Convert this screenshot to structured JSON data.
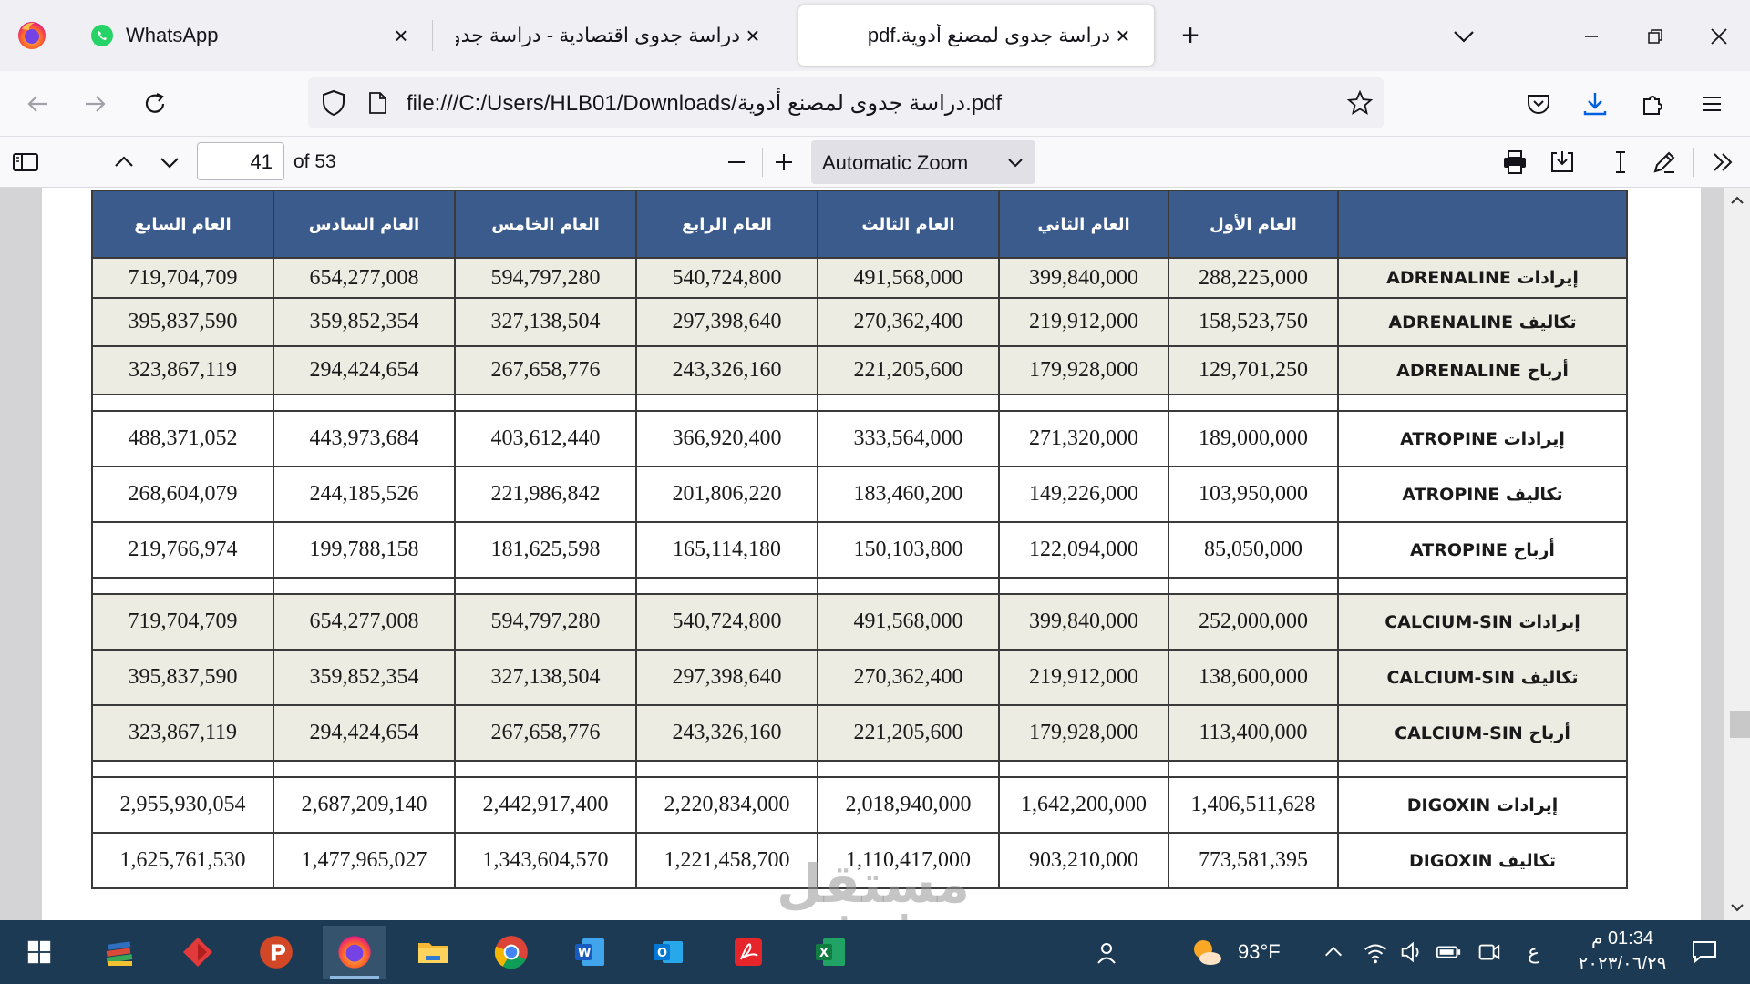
{
  "browser": {
    "tabs": [
      {
        "label": "WhatsApp",
        "close": "×"
      },
      {
        "label": "دراسة جدوى اقتصادية - دراسة جدوى",
        "close": "×"
      },
      {
        "label": "دراسة جدوى لمصنع أدوية.pdf",
        "close": "×"
      }
    ],
    "new_tab": "+",
    "url": "file:///C:/Users/HLB01/Downloads/دراسة جدوى لمصنع أدوية.pdf"
  },
  "pdf_toolbar": {
    "page_number": "41",
    "page_total": "of 53",
    "zoom": "Automatic Zoom"
  },
  "table": {
    "headers": [
      "العام السابع",
      "العام السادس",
      "العام الخامس",
      "العام الرابع",
      "العام الثالث",
      "العام الثاني",
      "العام الأول",
      ""
    ],
    "groups": [
      {
        "shaded": true,
        "rows": [
          {
            "label": "إيرادات ADRENALINE",
            "values": [
              "719,704,709",
              "654,277,008",
              "594,797,280",
              "540,724,800",
              "491,568,000",
              "399,840,000",
              "288,225,000"
            ]
          },
          {
            "label": "تكاليف ADRENALINE",
            "values": [
              "395,837,590",
              "359,852,354",
              "327,138,504",
              "297,398,640",
              "270,362,400",
              "219,912,000",
              "158,523,750"
            ]
          },
          {
            "label": "أرباح ADRENALINE",
            "values": [
              "323,867,119",
              "294,424,654",
              "267,658,776",
              "243,326,160",
              "221,205,600",
              "179,928,000",
              "129,701,250"
            ]
          }
        ]
      },
      {
        "shaded": false,
        "rows": [
          {
            "label": "إيرادات ATROPINE",
            "values": [
              "488,371,052",
              "443,973,684",
              "403,612,440",
              "366,920,400",
              "333,564,000",
              "271,320,000",
              "189,000,000"
            ]
          },
          {
            "label": "تكاليف ATROPINE",
            "values": [
              "268,604,079",
              "244,185,526",
              "221,986,842",
              "201,806,220",
              "183,460,200",
              "149,226,000",
              "103,950,000"
            ]
          },
          {
            "label": "أرباح ATROPINE",
            "values": [
              "219,766,974",
              "199,788,158",
              "181,625,598",
              "165,114,180",
              "150,103,800",
              "122,094,000",
              "85,050,000"
            ]
          }
        ]
      },
      {
        "shaded": true,
        "rows": [
          {
            "label": "إيرادات CALCIUM-SIN",
            "values": [
              "719,704,709",
              "654,277,008",
              "594,797,280",
              "540,724,800",
              "491,568,000",
              "399,840,000",
              "252,000,000"
            ]
          },
          {
            "label": "تكاليف CALCIUM-SIN",
            "values": [
              "395,837,590",
              "359,852,354",
              "327,138,504",
              "297,398,640",
              "270,362,400",
              "219,912,000",
              "138,600,000"
            ]
          },
          {
            "label": "أرباح CALCIUM-SIN",
            "values": [
              "323,867,119",
              "294,424,654",
              "267,658,776",
              "243,326,160",
              "221,205,600",
              "179,928,000",
              "113,400,000"
            ]
          }
        ]
      },
      {
        "shaded": false,
        "rows": [
          {
            "label": "إيرادات DIGOXIN",
            "values": [
              "2,955,930,054",
              "2,687,209,140",
              "2,442,917,400",
              "2,220,834,000",
              "2,018,940,000",
              "1,642,200,000",
              "1,406,511,628"
            ]
          },
          {
            "label": "تكاليف DIGOXIN",
            "values": [
              "1,625,761,530",
              "1,477,965,027",
              "1,343,604,570",
              "1,221,458,700",
              "1,110,417,000",
              "903,210,000",
              "773,581,395"
            ]
          }
        ]
      }
    ]
  },
  "watermark": {
    "line1": "مستقل",
    "line2": "mostaql.com"
  },
  "taskbar": {
    "weather": "93°F",
    "ime": "ع",
    "time": "01:34 م",
    "date": "٢٠٢٣/٠٦/٢٩"
  }
}
